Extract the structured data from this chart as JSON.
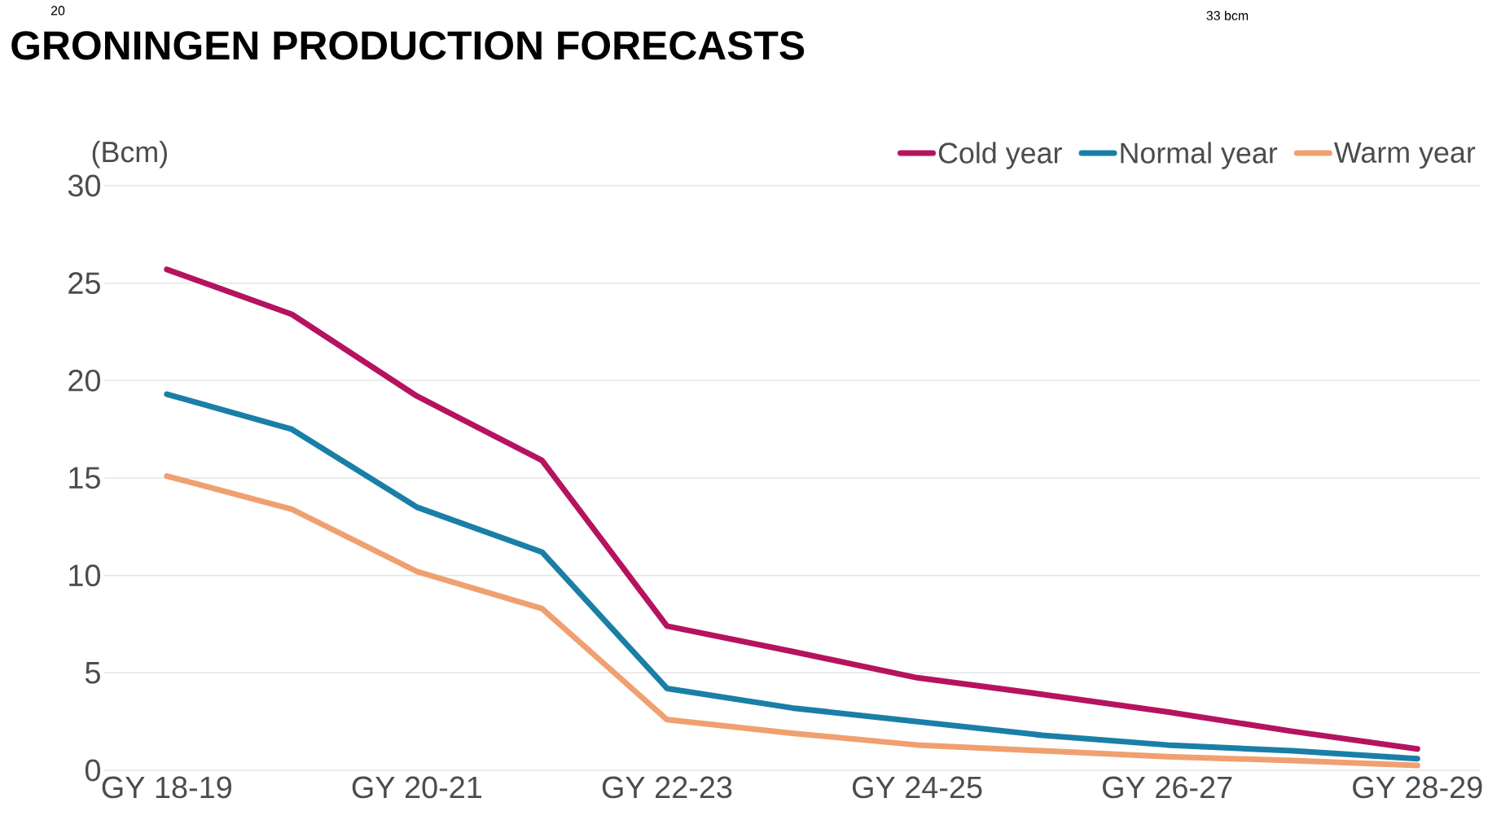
{
  "chart_data": {
    "type": "line",
    "title": "GRONINGEN PRODUCTION FORECASTS",
    "ylabel": "(Bcm)",
    "categories": [
      "GY 18-19",
      null,
      "GY 20-21",
      null,
      "GY 22-23",
      null,
      "GY 24-25",
      null,
      "GY 26-27",
      null,
      "GY 28-29"
    ],
    "series": [
      {
        "name": "Cold year",
        "color": "#b5135f",
        "values": [
          25.7,
          23.4,
          19.2,
          15.9,
          7.4,
          6.1,
          4.75,
          3.9,
          3.0,
          2.0,
          1.1
        ]
      },
      {
        "name": "Normal year",
        "color": "#1a7fa6",
        "values": [
          19.3,
          17.5,
          13.5,
          11.2,
          4.2,
          3.2,
          2.5,
          1.8,
          1.3,
          1.0,
          0.6
        ]
      },
      {
        "name": "Warm year",
        "color": "#f0a070",
        "values": [
          15.1,
          13.4,
          10.2,
          8.3,
          2.6,
          1.9,
          1.3,
          1.0,
          0.7,
          0.5,
          0.25
        ]
      }
    ],
    "ylim": [
      0,
      30
    ],
    "yticks": [
      0,
      5,
      10,
      15,
      20,
      25,
      30
    ],
    "grid": "y",
    "legend": "top right",
    "marker": "none",
    "line_style": "solid",
    "annotations": [
      "20",
      "33 bcm"
    ]
  }
}
